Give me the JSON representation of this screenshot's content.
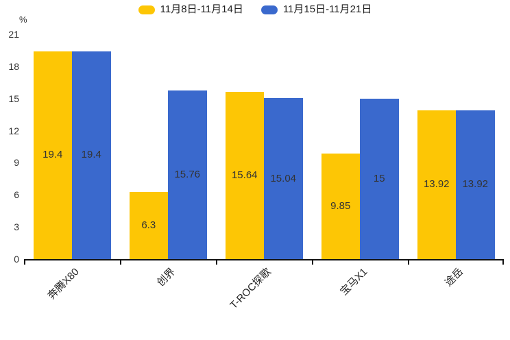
{
  "chart_data": {
    "type": "bar",
    "title": "",
    "unit": "%",
    "categories": [
      "奔腾X80",
      "创界",
      "T-ROC探歌",
      "宝马X1",
      "途岳"
    ],
    "series": [
      {
        "name": "11月8日-11月14日",
        "color": "#FDC605",
        "values": [
          19.4,
          6.3,
          15.64,
          9.85,
          13.92
        ]
      },
      {
        "name": "11月15日-11月21日",
        "color": "#3A69CD",
        "values": [
          19.4,
          15.76,
          15.04,
          15,
          13.92
        ]
      }
    ],
    "value_labels": [
      "19.4",
      "6.3",
      "15.64",
      "9.85",
      "13.92",
      "19.4",
      "15.76",
      "15.04",
      "15",
      "13.92"
    ],
    "yticks": [
      "0",
      "3",
      "6",
      "9",
      "12",
      "15",
      "18",
      "21"
    ],
    "ylim": [
      0,
      21
    ],
    "xlabel": "",
    "ylabel": "%",
    "grid": false,
    "legend_position": "top",
    "value_label_position": "inside-center",
    "colors": {
      "axis": "#111111",
      "tick_text": "#333333",
      "bar_label_text": "#333333"
    }
  }
}
